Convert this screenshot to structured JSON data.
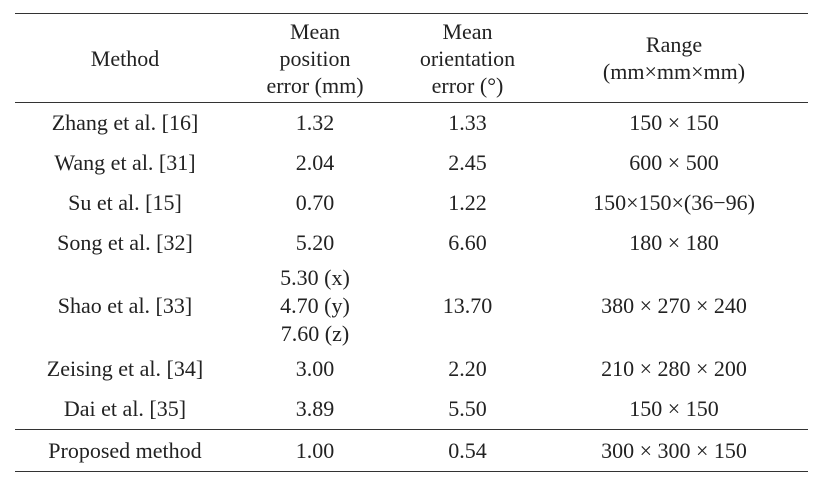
{
  "table": {
    "header": [
      [
        "Method"
      ],
      [
        "Mean",
        "position",
        "error (mm)"
      ],
      [
        "Mean",
        "orientation",
        "error (°)"
      ],
      [
        "Range",
        "(mm×mm×mm)"
      ]
    ],
    "rows": [
      [
        "Zhang et al. [16]",
        "1.32",
        "1.33",
        "150 × 150"
      ],
      [
        "Wang et al. [31]",
        "2.04",
        "2.45",
        "600 × 500"
      ],
      [
        "Su et al. [15]",
        "0.70",
        "1.22",
        "150×150×(36−96)"
      ],
      [
        "Song et al. [32]",
        "5.20",
        "6.60",
        "180 × 180"
      ],
      [
        "Shao et al. [33]",
        [
          "5.30 (x)",
          "4.70 (y)",
          "7.60 (z)"
        ],
        "13.70",
        "380 × 270 × 240"
      ],
      [
        "Zeising et al. [34]",
        "3.00",
        "2.20",
        "210 × 280 × 200"
      ],
      [
        "Dai et al. [35]",
        "3.89",
        "5.50",
        "150 × 150"
      ],
      [
        "Proposed method",
        "1.00",
        "0.54",
        "300 × 300 × 150"
      ]
    ]
  }
}
